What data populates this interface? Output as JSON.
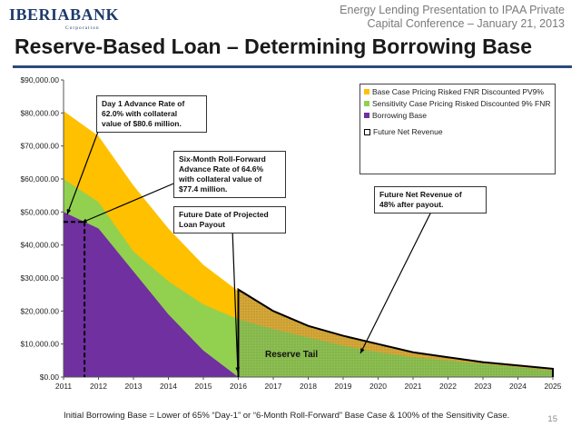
{
  "logo": {
    "main": "IBERIABANK",
    "sub": "Corporation"
  },
  "header": {
    "line1": "Energy Lending Presentation to IPAA Private",
    "line2": "Capital Conference – January 21, 2013"
  },
  "title": "Reserve-Based Loan – Determining Borrowing Base",
  "footnote": "Initial Borrowing Base = Lower of 65% “Day-1” or “6-Month Roll-Forward” Base Case & 100% of the Sensitivity Case.",
  "page_number": "15",
  "colors": {
    "base_case": "#FFC000",
    "sensitivity": "#92D050",
    "borrowing_base": "#7030A0",
    "title_rule": "#2C4A7C",
    "tail_fill": "#D4A53A"
  },
  "annotations": {
    "day1": [
      "Day 1 Advance Rate of",
      "62.0% with collateral",
      "value of $80.6 million."
    ],
    "six_month": [
      "Six-Month Roll-Forward",
      "Advance Rate of 64.6%",
      "with collateral value of",
      "$77.4 million."
    ],
    "payout": [
      "Future Date of Projected",
      "Loan Payout"
    ],
    "fnr_pct": [
      "Future Net Revenue of",
      "48% after payout."
    ],
    "reserve_tail": "Reserve Tail"
  },
  "chart_data": {
    "type": "area",
    "x_labels": [
      "2011",
      "2012",
      "2013",
      "2014",
      "2015",
      "2016",
      "2017",
      "2018",
      "2019",
      "2020",
      "2021",
      "2022",
      "2023",
      "2024",
      "2025"
    ],
    "ylim": [
      0,
      90000
    ],
    "y_ticks": [
      "$0.00",
      "$10,000.00",
      "$20,000.00",
      "$30,000.00",
      "$40,000.00",
      "$50,000.00",
      "$60,000.00",
      "$70,000.00",
      "$80,000.00",
      "$90,000.00"
    ],
    "grid": false,
    "legend_position": "top-right",
    "legend": [
      "Base Case Pricing Risked FNR Discounted PV9%",
      "Sensitivity Case Pricing Risked Discounted 9% FNR",
      "Borrowing Base",
      "Future Net Revenue"
    ],
    "series": [
      {
        "name": "Base Case Pricing Risked FNR Discounted PV9%",
        "values": [
          80600,
          73000,
          58000,
          45000,
          34000,
          26000,
          null,
          null,
          null,
          null,
          null,
          null,
          null,
          null,
          null
        ]
      },
      {
        "name": "Sensitivity Case Pricing Risked Discounted 9% FNR",
        "values": [
          60000,
          53000,
          38000,
          29000,
          22000,
          17500,
          14500,
          12000,
          9500,
          7500,
          6000,
          5000,
          4000,
          3000,
          2000
        ]
      },
      {
        "name": "Borrowing Base",
        "values": [
          50000,
          45000,
          32000,
          19000,
          8000,
          0,
          null,
          null,
          null,
          null,
          null,
          null,
          null,
          null,
          null
        ]
      },
      {
        "name": "Future Net Revenue",
        "values": [
          null,
          null,
          null,
          null,
          null,
          26500,
          20000,
          15500,
          12500,
          10000,
          7500,
          6000,
          4500,
          3500,
          2500
        ]
      }
    ]
  }
}
